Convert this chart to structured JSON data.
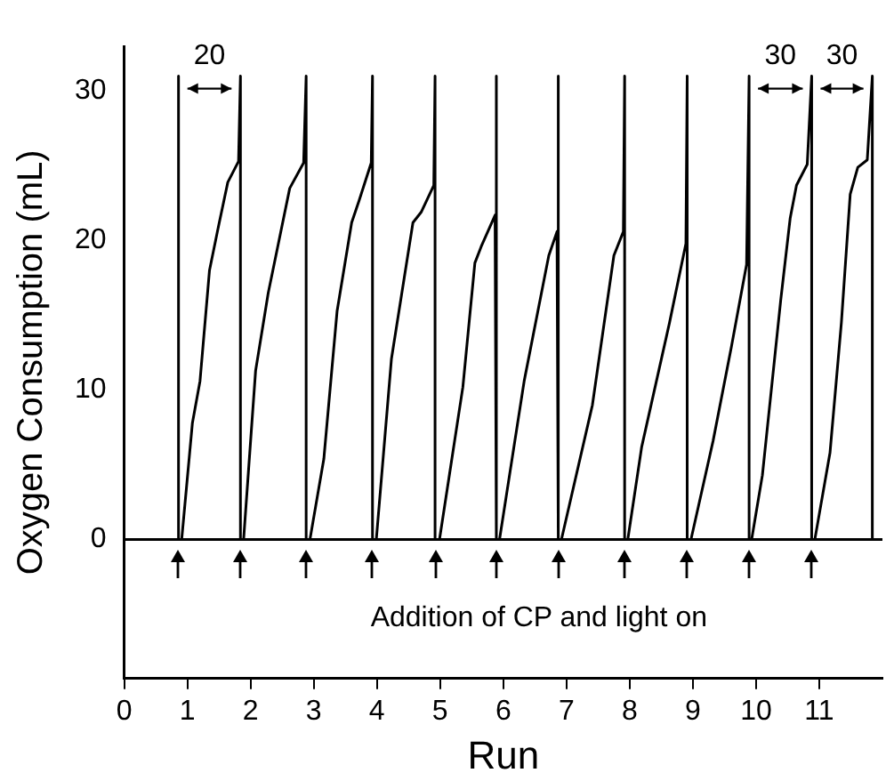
{
  "chart_data": {
    "type": "line",
    "xlabel": "Run",
    "ylabel": "Oxygen Consumption (mL)",
    "xlim": [
      0,
      12
    ],
    "ylim": [
      -9.3,
      33
    ],
    "xticks": [
      0,
      1,
      2,
      3,
      4,
      5,
      6,
      7,
      8,
      9,
      10,
      11
    ],
    "yticks": [
      0,
      10,
      20,
      30
    ],
    "grid": false,
    "legend": false,
    "marker": "none",
    "line_style": "solid",
    "ref_lines": [
      {
        "axis": "y",
        "value": 0,
        "color": "#000000"
      }
    ],
    "annotations": [
      {
        "text": "20",
        "x": 1.84,
        "y": 31
      },
      {
        "text": "30",
        "x": 10.88,
        "y": 31
      },
      {
        "text": "30",
        "x": 11.84,
        "y": 31
      },
      "Addition of CP and light on"
    ],
    "series": [
      {
        "color": "#000000",
        "x": [
          0.86,
          0.86,
          0.91,
          1.08,
          1.2,
          1.35,
          1.48,
          1.64,
          1.81,
          1.84,
          1.84,
          1.89,
          2.08,
          2.28,
          2.62,
          2.84,
          2.88,
          2.88,
          2.94,
          3.16,
          3.37,
          3.6,
          3.72,
          3.91,
          3.93,
          3.93,
          3.99,
          4.23,
          4.57,
          4.7,
          4.9,
          4.92,
          4.92,
          4.99,
          5.36,
          5.55,
          5.65,
          5.87,
          5.89,
          5.89,
          5.94,
          6.33,
          6.72,
          6.85,
          6.87,
          6.87,
          6.92,
          7.41,
          7.75,
          7.9,
          7.92,
          7.92,
          7.97,
          8.19,
          8.63,
          8.89,
          8.91,
          8.91,
          8.97,
          9.32,
          9.61,
          9.85,
          9.89,
          9.89,
          9.93,
          10.1,
          10.39,
          10.54,
          10.64,
          10.81,
          10.88,
          10.88,
          10.93,
          11.17,
          11.35,
          11.49,
          11.61,
          11.76,
          11.84,
          11.84
        ],
        "values": [
          31,
          0,
          0,
          7.8,
          10.6,
          18,
          20.7,
          23.9,
          25.3,
          31,
          0,
          0,
          11.3,
          16.5,
          23.5,
          25.2,
          31,
          0,
          0,
          5.4,
          15.3,
          21.2,
          22.7,
          25.2,
          31,
          0,
          0,
          12.1,
          21.2,
          21.9,
          23.7,
          31,
          0,
          0,
          10.2,
          18.5,
          19.6,
          21.7,
          31,
          0,
          0,
          10.6,
          19,
          20.6,
          31,
          0,
          0,
          9,
          19,
          20.6,
          31,
          0,
          0,
          6.2,
          14.5,
          19.8,
          31,
          0,
          0,
          6.6,
          12.9,
          18.4,
          31,
          0,
          0,
          4.3,
          16,
          21.5,
          23.7,
          25.1,
          31,
          0,
          0,
          5.8,
          14.5,
          23.1,
          24.9,
          25.4,
          31,
          0
        ]
      }
    ]
  }
}
